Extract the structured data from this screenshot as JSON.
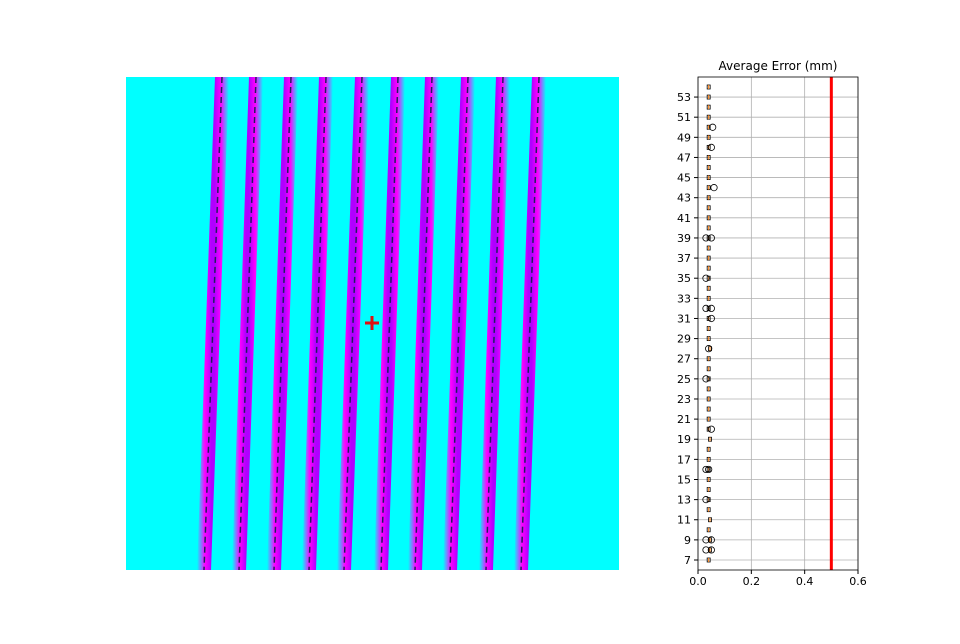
{
  "chart_data": {
    "type": "boxplot",
    "orientation": "horizontal",
    "title": "Average Error (mm)",
    "categories": [
      7,
      null,
      9,
      null,
      11,
      null,
      13,
      null,
      15,
      null,
      17,
      null,
      19,
      null,
      21,
      null,
      23,
      null,
      25,
      null,
      27,
      null,
      29,
      null,
      31,
      null,
      33,
      null,
      35,
      null,
      37,
      null,
      39,
      null,
      41,
      null,
      43,
      null,
      45,
      null,
      47,
      null,
      49,
      null,
      51,
      null,
      53,
      null
    ],
    "medians": [
      0.04,
      0.045,
      0.045,
      0.04,
      0.045,
      0.04,
      0.04,
      0.04,
      0.04,
      0.04,
      0.04,
      0.04,
      0.045,
      0.04,
      0.04,
      0.04,
      0.04,
      0.04,
      0.04,
      0.04,
      0.04,
      0.045,
      0.04,
      0.04,
      0.04,
      0.04,
      0.04,
      0.04,
      0.04,
      0.04,
      0.04,
      0.04,
      0.04,
      0.04,
      0.04,
      0.04,
      0.04,
      0.04,
      0.04,
      0.04,
      0.04,
      0.04,
      0.04,
      0.04,
      0.04,
      0.04,
      0.04,
      0.04
    ],
    "outliers": [
      [],
      [
        0.03,
        0.05
      ],
      [
        0.03,
        0.05
      ],
      [],
      [],
      [],
      [
        0.03
      ],
      [],
      [],
      [
        0.03,
        0.04
      ],
      [],
      [],
      [],
      [
        0.05
      ],
      [],
      [],
      [],
      [],
      [
        0.03
      ],
      [],
      [],
      [
        0.04
      ],
      [],
      [],
      [
        0.05
      ],
      [
        0.03,
        0.05
      ],
      [],
      [],
      [
        0.03
      ],
      [],
      [],
      [],
      [
        0.03,
        0.05
      ],
      [],
      [],
      [],
      [],
      [
        0.06
      ],
      [],
      [],
      [],
      [
        0.05
      ],
      [],
      [
        0.055
      ],
      [],
      [],
      [],
      []
    ],
    "threshold": 0.5,
    "threshold_color": "#ff0000",
    "box_color": "#000000",
    "median_color": "#ff7f0e",
    "xlim": [
      0,
      0.6
    ],
    "xticks": [
      {
        "value": 0,
        "label": "0.0"
      },
      0.2,
      0.4,
      0.6
    ],
    "grid": true
  }
}
